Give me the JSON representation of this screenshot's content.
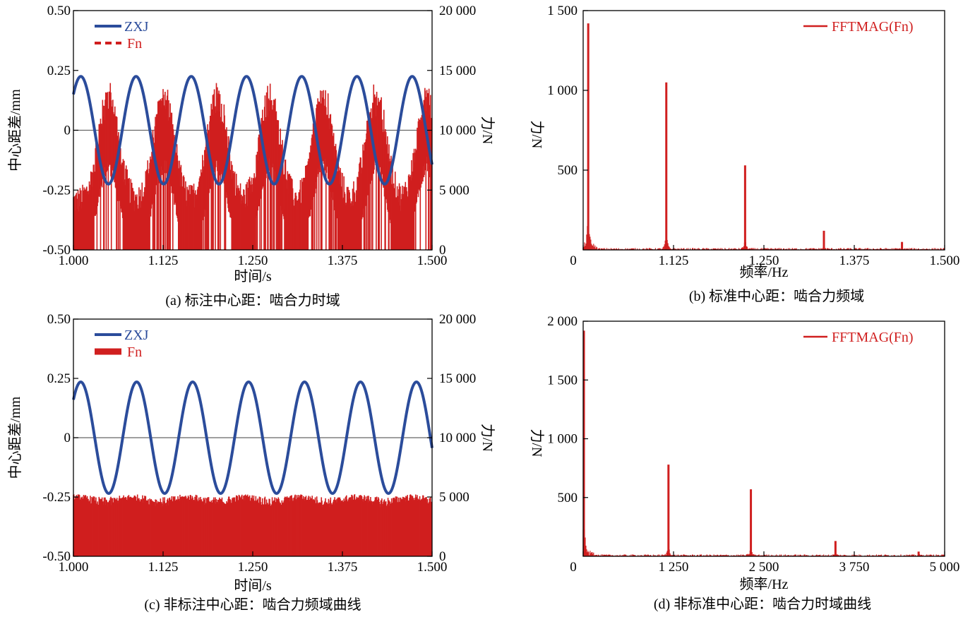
{
  "chart_data": [
    {
      "id": "a",
      "type": "line",
      "caption": "(a) 标注中心距：啮合力时域",
      "xlabel": "时间/s",
      "ylabel_left": "中心距差/mm",
      "ylabel_right": "力/N",
      "xlim": [
        1.0,
        1.5
      ],
      "ylim_left": [
        -0.5,
        0.5
      ],
      "ylim_right": [
        0,
        20000
      ],
      "x_ticks": [
        "1.000",
        "1.125",
        "1.250",
        "1.375",
        "1.500"
      ],
      "y_ticks_left": [
        "0.50",
        "0.25",
        "0",
        "-0.25",
        "-0.50"
      ],
      "y_ticks_right": [
        "20 000",
        "15 000",
        "10 000",
        "5 000",
        "0"
      ],
      "zero_line": true,
      "series": [
        {
          "name": "ZXJ",
          "axis": "left",
          "color": "#2b4c9b",
          "style": "solid",
          "model": "sine",
          "amplitude": 0.225,
          "period": 0.077,
          "value_at_start": 0.15
        },
        {
          "name": "Fn",
          "axis": "right",
          "color": "#d01f1f",
          "style": "dashed",
          "model": "meshing-force",
          "baseline_max": 5200,
          "peak_times": [
            1.049,
            1.126,
            1.2,
            1.274,
            1.348,
            1.422,
            1.493
          ],
          "peak_value": 14300,
          "valley_value": 7800
        }
      ],
      "legend_position": "top-left"
    },
    {
      "id": "b",
      "type": "bar",
      "caption": "(b) 标准中心距：啮合力频域",
      "xlabel": "频率/Hz",
      "ylabel": "力/N",
      "xlim": [
        1.0,
        1.5
      ],
      "ylim": [
        0,
        1500
      ],
      "x_ticks": [
        "0",
        "1.125",
        "1.250",
        "1.375",
        "1.500"
      ],
      "y_ticks": [
        "1 500",
        "1 000",
        "500"
      ],
      "series": [
        {
          "name": "FFTMAG(Fn)",
          "color": "#d01f1f",
          "peaks": [
            {
              "x": 1.007,
              "y": 1420
            },
            {
              "x": 1.115,
              "y": 1050
            },
            {
              "x": 1.224,
              "y": 530
            },
            {
              "x": 1.333,
              "y": 120
            },
            {
              "x": 1.441,
              "y": 50
            }
          ]
        }
      ],
      "legend_position": "top-right"
    },
    {
      "id": "c",
      "type": "line",
      "caption": "(c) 非标注中心距：啮合力频域曲线",
      "xlabel": "时间/s",
      "ylabel_left": "中心距差/mm",
      "ylabel_right": "力/N",
      "xlim": [
        1.0,
        1.5
      ],
      "ylim_left": [
        -0.5,
        0.5
      ],
      "ylim_right": [
        0,
        20000
      ],
      "x_ticks": [
        "1.000",
        "1.125",
        "1.250",
        "1.375",
        "1.500"
      ],
      "y_ticks_left": [
        "0.50",
        "0.25",
        "0",
        "-0.25",
        "-0.50"
      ],
      "y_ticks_right": [
        "20 000",
        "15 000",
        "10 000",
        "5 000",
        "0"
      ],
      "zero_line": true,
      "series": [
        {
          "name": "ZXJ",
          "axis": "left",
          "color": "#2b4c9b",
          "style": "solid",
          "model": "sine",
          "amplitude": 0.235,
          "period": 0.078,
          "value_at_start": 0.16
        },
        {
          "name": "Fn",
          "axis": "right",
          "color": "#d01f1f",
          "style": "solid",
          "model": "noise-band",
          "band_low": 0,
          "band_high": 5300,
          "band_peak": 5700
        }
      ],
      "legend_position": "top-left"
    },
    {
      "id": "d",
      "type": "bar",
      "caption": "(d) 非标准中心距：啮合力时域曲线",
      "xlabel": "频率/Hz",
      "ylabel": "力/N",
      "xlim": [
        0,
        5000
      ],
      "ylim": [
        0,
        2000
      ],
      "x_ticks": [
        "0",
        "1 250",
        "2 500",
        "3 750",
        "5 000"
      ],
      "y_ticks": [
        "2 000",
        "1 500",
        "1 000",
        "500"
      ],
      "series": [
        {
          "name": "FFTMAG(Fn)",
          "color": "#d01f1f",
          "peaks": [
            {
              "x": 10,
              "y": 1920
            },
            {
              "x": 1180,
              "y": 780
            },
            {
              "x": 2320,
              "y": 570
            },
            {
              "x": 3490,
              "y": 130
            },
            {
              "x": 4640,
              "y": 40
            }
          ]
        }
      ],
      "legend_position": "top-right"
    }
  ]
}
